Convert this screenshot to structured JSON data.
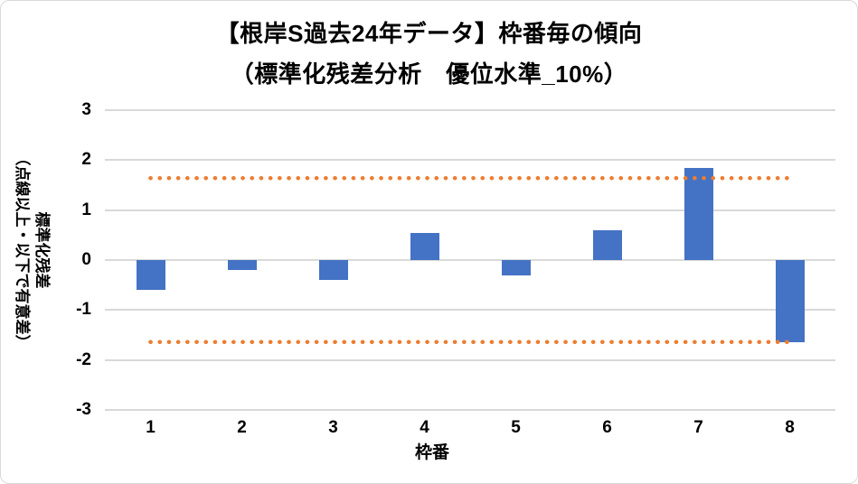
{
  "chart_data": {
    "type": "bar",
    "title": "【根岸S過去24年データ】枠番毎の傾向",
    "subtitle": "（標準化残差分析　優位水準_10%）",
    "xlabel": "枠番",
    "ylabel": "標準化残差",
    "ylabel_note": "（点線以上・以下で有意差）",
    "categories": [
      "1",
      "2",
      "3",
      "4",
      "5",
      "6",
      "7",
      "8"
    ],
    "values": [
      -0.6,
      -0.2,
      -0.4,
      0.55,
      -0.3,
      0.6,
      1.85,
      -1.65
    ],
    "series_name": "標準化残差",
    "thresholds": {
      "upper": 1.64,
      "lower": -1.64,
      "line_style": "round-dot"
    },
    "ylim": [
      -3,
      3
    ],
    "yticks": [
      3,
      2,
      1,
      0,
      -1,
      -2,
      -3
    ],
    "grid": true,
    "legend": "none",
    "colors": {
      "bar": "#4472C4",
      "threshold": "#ED7D31",
      "gridline": "#D9D9D9",
      "text": "#000000",
      "frame_border": "#D9D9D9"
    }
  }
}
